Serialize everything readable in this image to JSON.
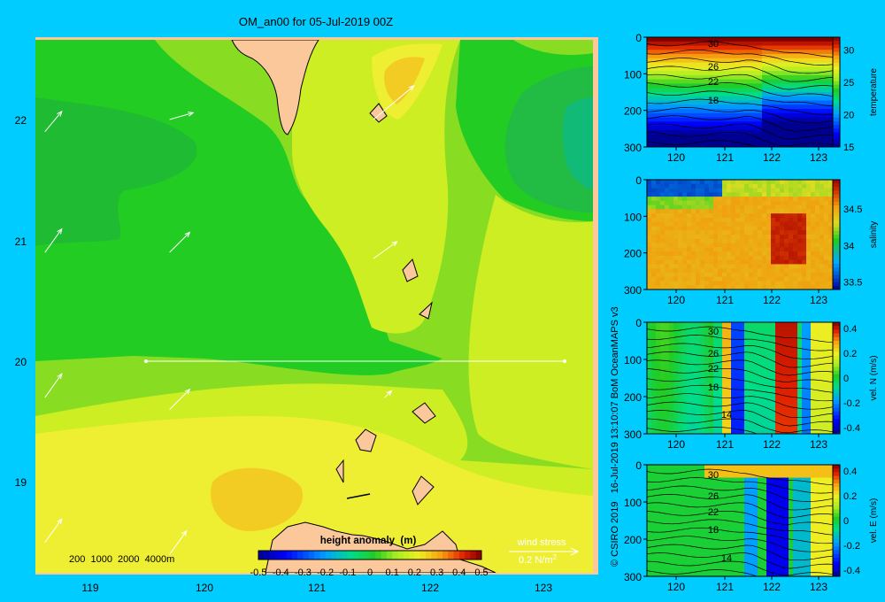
{
  "title": "OM_an00 for 05-Jul-2019 00Z",
  "credit": "© CSIRO 2019   16-Jul-2019 13:10:07 BoM OceanMAPS v3",
  "colors": {
    "background": "#00ccff",
    "land": "#fbc89c",
    "frame": "#fbc89c",
    "line": "#000000",
    "arrow": "#ffffff"
  },
  "chart_data": [
    {
      "type": "heatmap",
      "name": "map",
      "title": "OM_an00 for 05-Jul-2019 00Z",
      "xlim": [
        118.5,
        123.5
      ],
      "ylim": [
        18.25,
        22.7
      ],
      "x_ticks": [
        "119",
        "120",
        "121",
        "122",
        "123"
      ],
      "y_ticks": [
        "19",
        "20",
        "21",
        "22"
      ],
      "depth_legend": "200  1000  2000  4000m",
      "colorbar": {
        "label": "height anomaly  (m)",
        "ticks": [
          "-0.5",
          "-0.4",
          "-0.3",
          "-0.2",
          "-0.1",
          "0",
          "0.1",
          "0.2",
          "0.3",
          "0.4",
          "0.5"
        ],
        "range": [
          -0.5,
          0.5
        ]
      },
      "anomaly_levels": [
        {
          "level": 0.05,
          "color": "#22cc22"
        },
        {
          "level": 0.1,
          "color": "#88dd22"
        },
        {
          "level": 0.15,
          "color": "#ccee22"
        },
        {
          "level": 0.2,
          "color": "#eeee33"
        },
        {
          "level": 0.25,
          "color": "#f2cc22"
        }
      ],
      "wind_legend": {
        "label": "wind stress",
        "value": "0.2 N/m",
        "exponent": "2"
      },
      "wind_arrows": [
        {
          "lon": 118.6,
          "lat": 21.9,
          "u": 0.05,
          "v": 0.06
        },
        {
          "lon": 118.6,
          "lat": 20.9,
          "u": 0.05,
          "v": 0.07
        },
        {
          "lon": 118.6,
          "lat": 19.7,
          "u": 0.05,
          "v": 0.07
        },
        {
          "lon": 118.6,
          "lat": 18.5,
          "u": 0.05,
          "v": 0.07
        },
        {
          "lon": 119.7,
          "lat": 22.0,
          "u": 0.07,
          "v": 0.02
        },
        {
          "lon": 119.7,
          "lat": 20.9,
          "u": 0.06,
          "v": 0.06
        },
        {
          "lon": 119.7,
          "lat": 19.6,
          "u": 0.06,
          "v": 0.06
        },
        {
          "lon": 119.7,
          "lat": 18.4,
          "u": 0.05,
          "v": 0.07
        },
        {
          "lon": 121.5,
          "lat": 22.0,
          "u": 0.12,
          "v": 0.1
        },
        {
          "lon": 121.5,
          "lat": 20.85,
          "u": 0.07,
          "v": 0.05
        },
        {
          "lon": 121.6,
          "lat": 19.7,
          "u": 0.02,
          "v": 0.02
        }
      ],
      "section_line": {
        "lon": [
          119.5,
          123.2
        ],
        "lat": [
          20.0,
          20.0
        ]
      }
    },
    {
      "type": "heatmap",
      "name": "temperature",
      "xlabel": "",
      "ylabel": "",
      "colorbar_label": "temperature",
      "x_ticks": [
        "120",
        "121",
        "122",
        "123"
      ],
      "y_ticks": [
        "0",
        "100",
        "200",
        "300"
      ],
      "colorbar_ticks": [
        "30",
        "25",
        "20",
        "15"
      ],
      "colorbar_range": [
        15,
        32
      ],
      "contour_labels": [
        "30",
        "26",
        "22",
        "18"
      ]
    },
    {
      "type": "heatmap",
      "name": "salinity",
      "colorbar_label": "salinity",
      "x_ticks": [
        "120",
        "121",
        "122",
        "123"
      ],
      "y_ticks": [
        "0",
        "100",
        "200",
        "300"
      ],
      "colorbar_ticks": [
        "34.5",
        "34",
        "33.5"
      ],
      "colorbar_range": [
        33.4,
        34.9
      ]
    },
    {
      "type": "heatmap",
      "name": "vel-n",
      "colorbar_label": "vel. N  (m/s)",
      "x_ticks": [
        "120",
        "121",
        "122",
        "123"
      ],
      "y_ticks": [
        "0",
        "100",
        "200",
        "300"
      ],
      "colorbar_ticks": [
        "0.4",
        "0.2",
        "0",
        "-0.2",
        "-0.4"
      ],
      "colorbar_range": [
        -0.45,
        0.45
      ],
      "contour_labels": [
        "30",
        "26",
        "22",
        "18",
        "14"
      ]
    },
    {
      "type": "heatmap",
      "name": "vel-e",
      "colorbar_label": "vel. E  (m/s)",
      "x_ticks": [
        "120",
        "121",
        "122",
        "123"
      ],
      "y_ticks": [
        "0",
        "100",
        "200",
        "300"
      ],
      "colorbar_ticks": [
        "0.4",
        "0.2",
        "0",
        "-0.2",
        "-0.4"
      ],
      "colorbar_range": [
        -0.45,
        0.45
      ],
      "contour_labels": [
        "30",
        "26",
        "22",
        "18",
        "14"
      ]
    }
  ]
}
